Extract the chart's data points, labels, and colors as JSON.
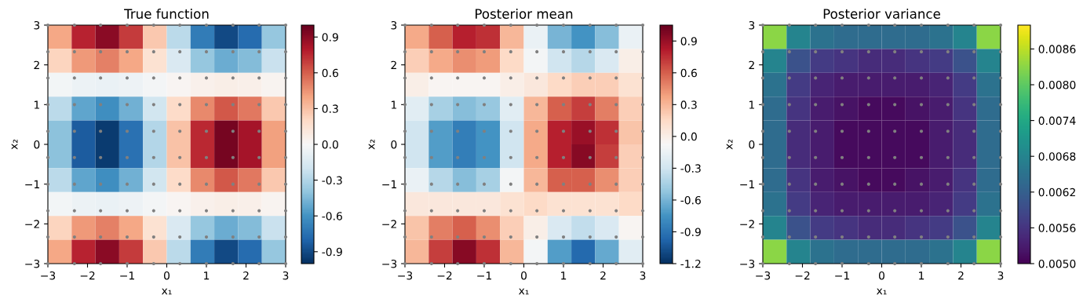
{
  "chart_data": [
    {
      "type": "heatmap",
      "title": "True function",
      "xlabel": "x₁",
      "ylabel": "x₂",
      "x": [
        -2.7,
        -2.1,
        -1.5,
        -0.9,
        -0.3,
        0.3,
        0.9,
        1.5,
        2.1,
        2.7
      ],
      "y": [
        2.7,
        2.1,
        1.5,
        0.9,
        0.3,
        -0.3,
        -0.9,
        -1.5,
        -2.1,
        -2.7
      ],
      "cells": [
        [
          0.39,
          0.77,
          0.9,
          0.7,
          0.27,
          -0.27,
          -0.7,
          -0.9,
          -0.77,
          -0.39
        ],
        [
          0.22,
          0.43,
          0.5,
          0.39,
          0.15,
          -0.15,
          -0.39,
          -0.5,
          -0.43,
          -0.22
        ],
        [
          -0.03,
          -0.06,
          -0.07,
          -0.05,
          -0.02,
          0.02,
          0.05,
          0.07,
          0.06,
          0.03
        ],
        [
          -0.27,
          -0.53,
          -0.62,
          -0.48,
          -0.19,
          0.19,
          0.48,
          0.62,
          0.53,
          0.27
        ],
        [
          -0.41,
          -0.83,
          -0.96,
          -0.75,
          -0.29,
          0.29,
          0.75,
          0.96,
          0.83,
          0.41
        ],
        [
          -0.41,
          -0.83,
          -0.96,
          -0.75,
          -0.29,
          0.29,
          0.75,
          0.96,
          0.83,
          0.41
        ],
        [
          -0.27,
          -0.53,
          -0.62,
          -0.48,
          -0.19,
          0.19,
          0.48,
          0.62,
          0.53,
          0.27
        ],
        [
          -0.03,
          -0.06,
          -0.07,
          -0.05,
          -0.02,
          0.02,
          0.05,
          0.07,
          0.06,
          0.03
        ],
        [
          0.22,
          0.43,
          0.5,
          0.39,
          0.15,
          -0.15,
          -0.39,
          -0.5,
          -0.43,
          -0.22
        ],
        [
          0.39,
          0.77,
          0.9,
          0.7,
          0.27,
          -0.27,
          -0.7,
          -0.9,
          -0.77,
          -0.39
        ]
      ],
      "clim": [
        -1.0,
        1.0
      ],
      "cticks": [
        -0.9,
        -0.6,
        -0.3,
        {
          "value": 0,
          "label": "0.0"
        },
        0.3,
        0.6,
        0.9
      ],
      "xlim": [
        -3,
        3
      ],
      "ylim": [
        -3,
        3
      ],
      "xticks": [
        -3,
        -2,
        -1,
        0,
        1,
        2,
        3
      ],
      "yticks": [
        -3,
        -2,
        -1,
        0,
        1,
        2,
        3
      ],
      "series": [
        {
          "type": "scatter",
          "color": "#808080",
          "marker": "circle",
          "x": [
            -3,
            -2.33,
            -1.67,
            -1,
            -0.33,
            0.33,
            1,
            1.67,
            2.33,
            3,
            -3,
            -2.33,
            -1.67,
            -1,
            -0.33,
            0.33,
            1,
            1.67,
            2.33,
            3,
            -3,
            -2.33,
            -1.67,
            -1,
            -0.33,
            0.33,
            1,
            1.67,
            2.33,
            3,
            -3,
            -2.33,
            -1.67,
            -1,
            -0.33,
            0.33,
            1,
            1.67,
            2.33,
            3,
            -3,
            -2.33,
            -1.67,
            -1,
            -0.33,
            0.33,
            1,
            1.67,
            2.33,
            3,
            -3,
            -2.33,
            -1.67,
            -1,
            -0.33,
            0.33,
            1,
            1.67,
            2.33,
            3,
            -3,
            -2.33,
            -1.67,
            -1,
            -0.33,
            0.33,
            1,
            1.67,
            2.33,
            3,
            -3,
            -2.33,
            -1.67,
            -1,
            -0.33,
            0.33,
            1,
            1.67,
            2.33,
            3,
            -3,
            -2.33,
            -1.67,
            -1,
            -0.33,
            0.33,
            1,
            1.67,
            2.33,
            3,
            -3,
            -2.33,
            -1.67,
            -1,
            -0.33,
            0.33,
            1,
            1.67,
            2.33,
            3
          ],
          "values": [
            3,
            3,
            3,
            3,
            3,
            3,
            3,
            3,
            3,
            3,
            2.33,
            2.33,
            2.33,
            2.33,
            2.33,
            2.33,
            2.33,
            2.33,
            2.33,
            2.33,
            1.67,
            1.67,
            1.67,
            1.67,
            1.67,
            1.67,
            1.67,
            1.67,
            1.67,
            1.67,
            1,
            1,
            1,
            1,
            1,
            1,
            1,
            1,
            1,
            1,
            0.33,
            0.33,
            0.33,
            0.33,
            0.33,
            0.33,
            0.33,
            0.33,
            0.33,
            0.33,
            -0.33,
            -0.33,
            -0.33,
            -0.33,
            -0.33,
            -0.33,
            -0.33,
            -0.33,
            -0.33,
            -0.33,
            -1,
            -1,
            -1,
            -1,
            -1,
            -1,
            -1,
            -1,
            -1,
            -1,
            -1.67,
            -1.67,
            -1.67,
            -1.67,
            -1.67,
            -1.67,
            -1.67,
            -1.67,
            -1.67,
            -1.67,
            -2.33,
            -2.33,
            -2.33,
            -2.33,
            -2.33,
            -2.33,
            -2.33,
            -2.33,
            -2.33,
            -2.33,
            -3,
            -3,
            -3,
            -3,
            -3,
            -3,
            -3,
            -3,
            -3,
            -3
          ]
        }
      ]
    },
    {
      "type": "heatmap",
      "title": "Posterior mean",
      "xlabel": "x₁",
      "ylabel": "x₂",
      "x": [
        -2.7,
        -2.1,
        -1.5,
        -0.9,
        -0.3,
        0.3,
        0.9,
        1.5,
        2.1,
        2.7
      ],
      "y": [
        2.7,
        2.1,
        1.5,
        0.9,
        0.3,
        -0.3,
        -0.9,
        -1.5,
        -2.1,
        -2.7
      ],
      "cells": [
        [
          0.35,
          0.6,
          0.8,
          0.75,
          0.3,
          -0.15,
          -0.6,
          -0.75,
          -0.55,
          -0.15
        ],
        [
          0.2,
          0.35,
          0.45,
          0.4,
          0.15,
          -0.1,
          -0.3,
          -0.4,
          -0.25,
          0.0
        ],
        [
          0.0,
          -0.05,
          -0.05,
          -0.05,
          0.0,
          0.05,
          0.15,
          0.2,
          0.2,
          0.1
        ],
        [
          -0.2,
          -0.45,
          -0.55,
          -0.5,
          -0.2,
          0.3,
          0.6,
          0.7,
          0.5,
          0.2
        ],
        [
          -0.3,
          -0.7,
          -0.85,
          -0.75,
          -0.3,
          0.35,
          0.8,
          0.9,
          0.75,
          0.25
        ],
        [
          -0.3,
          -0.7,
          -0.85,
          -0.75,
          -0.3,
          0.35,
          0.8,
          0.95,
          0.7,
          0.2
        ],
        [
          -0.15,
          -0.4,
          -0.55,
          -0.45,
          -0.1,
          0.3,
          0.6,
          0.6,
          0.45,
          0.2
        ],
        [
          0.05,
          0.05,
          0.05,
          0.05,
          0.1,
          0.15,
          0.1,
          0.1,
          0.1,
          0.15
        ],
        [
          0.25,
          0.5,
          0.6,
          0.45,
          0.2,
          0.0,
          -0.25,
          -0.35,
          -0.25,
          -0.05
        ],
        [
          0.3,
          0.7,
          0.95,
          0.75,
          0.3,
          -0.1,
          -0.7,
          -0.95,
          -0.65,
          -0.2
        ]
      ],
      "clim": [
        -1.2,
        1.05
      ],
      "cticks": [
        -1.2,
        -0.9,
        -0.6,
        -0.3,
        {
          "value": 0,
          "label": "0.0"
        },
        0.3,
        0.6,
        0.9
      ],
      "xlim": [
        -3,
        3
      ],
      "ylim": [
        -3,
        3
      ],
      "xticks": [
        -3,
        -2,
        -1,
        0,
        1,
        2,
        3
      ],
      "yticks": [
        -3,
        -2,
        -1,
        0,
        1,
        2,
        3
      ],
      "series": [
        {
          "type": "scatter",
          "color": "#808080",
          "marker": "circle",
          "x": [
            -3,
            -2.33,
            -1.67,
            -1,
            -0.33,
            0.33,
            1,
            1.67,
            2.33,
            3,
            -3,
            -2.33,
            -1.67,
            -1,
            -0.33,
            0.33,
            1,
            1.67,
            2.33,
            3,
            -3,
            -2.33,
            -1.67,
            -1,
            -0.33,
            0.33,
            1,
            1.67,
            2.33,
            3,
            -3,
            -2.33,
            -1.67,
            -1,
            -0.33,
            0.33,
            1,
            1.67,
            2.33,
            3,
            -3,
            -2.33,
            -1.67,
            -1,
            -0.33,
            0.33,
            1,
            1.67,
            2.33,
            3,
            -3,
            -2.33,
            -1.67,
            -1,
            -0.33,
            0.33,
            1,
            1.67,
            2.33,
            3,
            -3,
            -2.33,
            -1.67,
            -1,
            -0.33,
            0.33,
            1,
            1.67,
            2.33,
            3,
            -3,
            -2.33,
            -1.67,
            -1,
            -0.33,
            0.33,
            1,
            1.67,
            2.33,
            3,
            -3,
            -2.33,
            -1.67,
            -1,
            -0.33,
            0.33,
            1,
            1.67,
            2.33,
            3,
            -3,
            -2.33,
            -1.67,
            -1,
            -0.33,
            0.33,
            1,
            1.67,
            2.33,
            3
          ],
          "values": [
            3,
            3,
            3,
            3,
            3,
            3,
            3,
            3,
            3,
            3,
            2.33,
            2.33,
            2.33,
            2.33,
            2.33,
            2.33,
            2.33,
            2.33,
            2.33,
            2.33,
            1.67,
            1.67,
            1.67,
            1.67,
            1.67,
            1.67,
            1.67,
            1.67,
            1.67,
            1.67,
            1,
            1,
            1,
            1,
            1,
            1,
            1,
            1,
            1,
            1,
            0.33,
            0.33,
            0.33,
            0.33,
            0.33,
            0.33,
            0.33,
            0.33,
            0.33,
            0.33,
            -0.33,
            -0.33,
            -0.33,
            -0.33,
            -0.33,
            -0.33,
            -0.33,
            -0.33,
            -0.33,
            -0.33,
            -1,
            -1,
            -1,
            -1,
            -1,
            -1,
            -1,
            -1,
            -1,
            -1,
            -1.67,
            -1.67,
            -1.67,
            -1.67,
            -1.67,
            -1.67,
            -1.67,
            -1.67,
            -1.67,
            -1.67,
            -2.33,
            -2.33,
            -2.33,
            -2.33,
            -2.33,
            -2.33,
            -2.33,
            -2.33,
            -2.33,
            -2.33,
            -3,
            -3,
            -3,
            -3,
            -3,
            -3,
            -3,
            -3,
            -3,
            -3
          ]
        }
      ]
    },
    {
      "type": "heatmap",
      "title": "Posterior variance",
      "xlabel": "x₁",
      "ylabel": "x₂",
      "x": [
        -2.7,
        -2.1,
        -1.5,
        -0.9,
        -0.3,
        0.3,
        0.9,
        1.5,
        2.1,
        2.7
      ],
      "y": [
        2.7,
        2.1,
        1.5,
        0.9,
        0.3,
        -0.3,
        -0.9,
        -1.5,
        -2.1,
        -2.7
      ],
      "cells": [
        [
          0.0083,
          0.0068,
          0.0065,
          0.0064,
          0.0064,
          0.0064,
          0.0064,
          0.0065,
          0.0068,
          0.0083
        ],
        [
          0.0068,
          0.006,
          0.0057,
          0.0056,
          0.0055,
          0.0055,
          0.0056,
          0.0057,
          0.006,
          0.0068
        ],
        [
          0.0065,
          0.0057,
          0.0054,
          0.0053,
          0.0053,
          0.0053,
          0.0053,
          0.0054,
          0.0057,
          0.0065
        ],
        [
          0.0064,
          0.0056,
          0.0053,
          0.0052,
          0.0051,
          0.0051,
          0.0052,
          0.0053,
          0.0056,
          0.0064
        ],
        [
          0.0064,
          0.0055,
          0.0053,
          0.0051,
          0.0051,
          0.0051,
          0.0051,
          0.0053,
          0.0055,
          0.0064
        ],
        [
          0.0064,
          0.0055,
          0.0053,
          0.0051,
          0.0051,
          0.0051,
          0.0051,
          0.0053,
          0.0055,
          0.0064
        ],
        [
          0.0064,
          0.0056,
          0.0053,
          0.0052,
          0.0051,
          0.0051,
          0.0052,
          0.0053,
          0.0056,
          0.0064
        ],
        [
          0.0065,
          0.0057,
          0.0054,
          0.0053,
          0.0053,
          0.0053,
          0.0053,
          0.0054,
          0.0057,
          0.0065
        ],
        [
          0.0068,
          0.006,
          0.0057,
          0.0056,
          0.0055,
          0.0055,
          0.0056,
          0.0057,
          0.006,
          0.0068
        ],
        [
          0.0083,
          0.0068,
          0.0065,
          0.0064,
          0.0064,
          0.0064,
          0.0064,
          0.0065,
          0.0068,
          0.0083
        ]
      ],
      "clim": [
        0.005,
        0.009
      ],
      "cticks": [
        {
          "value": 0.005,
          "label": "0.0050"
        },
        {
          "value": 0.0056,
          "label": "0.0056"
        },
        {
          "value": 0.0062,
          "label": "0.0062"
        },
        {
          "value": 0.0068,
          "label": "0.0068"
        },
        {
          "value": 0.0074,
          "label": "0.0074"
        },
        {
          "value": 0.008,
          "label": "0.0080"
        },
        {
          "value": 0.0086,
          "label": "0.0086"
        }
      ],
      "xlim": [
        -3,
        3
      ],
      "ylim": [
        -3,
        3
      ],
      "xticks": [
        -3,
        -2,
        -1,
        0,
        1,
        2,
        3
      ],
      "yticks": [
        -3,
        -2,
        -1,
        0,
        1,
        2,
        3
      ],
      "series": [
        {
          "type": "scatter",
          "color": "#808080",
          "marker": "circle",
          "x": [
            -3,
            -2.33,
            -1.67,
            -1,
            -0.33,
            0.33,
            1,
            1.67,
            2.33,
            3,
            -3,
            -2.33,
            -1.67,
            -1,
            -0.33,
            0.33,
            1,
            1.67,
            2.33,
            3,
            -3,
            -2.33,
            -1.67,
            -1,
            -0.33,
            0.33,
            1,
            1.67,
            2.33,
            3,
            -3,
            -2.33,
            -1.67,
            -1,
            -0.33,
            0.33,
            1,
            1.67,
            2.33,
            3,
            -3,
            -2.33,
            -1.67,
            -1,
            -0.33,
            0.33,
            1,
            1.67,
            2.33,
            3,
            -3,
            -2.33,
            -1.67,
            -1,
            -0.33,
            0.33,
            1,
            1.67,
            2.33,
            3,
            -3,
            -2.33,
            -1.67,
            -1,
            -0.33,
            0.33,
            1,
            1.67,
            2.33,
            3,
            -3,
            -2.33,
            -1.67,
            -1,
            -0.33,
            0.33,
            1,
            1.67,
            2.33,
            3,
            -3,
            -2.33,
            -1.67,
            -1,
            -0.33,
            0.33,
            1,
            1.67,
            2.33,
            3,
            -3,
            -2.33,
            -1.67,
            -1,
            -0.33,
            0.33,
            1,
            1.67,
            2.33,
            3
          ],
          "values": [
            3,
            3,
            3,
            3,
            3,
            3,
            3,
            3,
            3,
            3,
            2.33,
            2.33,
            2.33,
            2.33,
            2.33,
            2.33,
            2.33,
            2.33,
            2.33,
            2.33,
            1.67,
            1.67,
            1.67,
            1.67,
            1.67,
            1.67,
            1.67,
            1.67,
            1.67,
            1.67,
            1,
            1,
            1,
            1,
            1,
            1,
            1,
            1,
            1,
            1,
            0.33,
            0.33,
            0.33,
            0.33,
            0.33,
            0.33,
            0.33,
            0.33,
            0.33,
            0.33,
            -0.33,
            -0.33,
            -0.33,
            -0.33,
            -0.33,
            -0.33,
            -0.33,
            -0.33,
            -0.33,
            -0.33,
            -1,
            -1,
            -1,
            -1,
            -1,
            -1,
            -1,
            -1,
            -1,
            -1,
            -1.67,
            -1.67,
            -1.67,
            -1.67,
            -1.67,
            -1.67,
            -1.67,
            -1.67,
            -1.67,
            -1.67,
            -2.33,
            -2.33,
            -2.33,
            -2.33,
            -2.33,
            -2.33,
            -2.33,
            -2.33,
            -2.33,
            -2.33,
            -3,
            -3,
            -3,
            -3,
            -3,
            -3,
            -3,
            -3,
            -3,
            -3
          ]
        }
      ]
    }
  ]
}
